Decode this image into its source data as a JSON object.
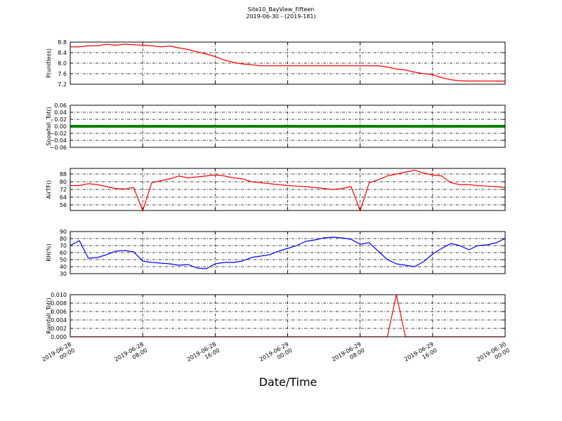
{
  "title": "Site10_BayView_Fifteen",
  "subtitle": "2019-06-30 - (2019-181)",
  "xlabel": "Date/Time",
  "x": [
    "2019-06-28 00:00",
    "2019-06-28 01:00",
    "2019-06-28 02:00",
    "2019-06-28 03:00",
    "2019-06-28 04:00",
    "2019-06-28 05:00",
    "2019-06-28 06:00",
    "2019-06-28 07:00",
    "2019-06-28 08:00",
    "2019-06-28 09:00",
    "2019-06-28 10:00",
    "2019-06-28 11:00",
    "2019-06-28 12:00",
    "2019-06-28 13:00",
    "2019-06-28 14:00",
    "2019-06-28 15:00",
    "2019-06-28 16:00",
    "2019-06-28 17:00",
    "2019-06-28 18:00",
    "2019-06-28 19:00",
    "2019-06-28 20:00",
    "2019-06-28 21:00",
    "2019-06-28 22:00",
    "2019-06-28 23:00",
    "2019-06-29 00:00",
    "2019-06-29 01:00",
    "2019-06-29 02:00",
    "2019-06-29 03:00",
    "2019-06-29 04:00",
    "2019-06-29 05:00",
    "2019-06-29 06:00",
    "2019-06-29 07:00",
    "2019-06-29 08:00",
    "2019-06-29 09:00",
    "2019-06-29 10:00",
    "2019-06-29 11:00",
    "2019-06-29 12:00",
    "2019-06-29 13:00",
    "2019-06-29 14:00",
    "2019-06-29 15:00",
    "2019-06-29 16:00",
    "2019-06-29 17:00",
    "2019-06-29 18:00",
    "2019-06-29 19:00",
    "2019-06-29 20:00",
    "2019-06-29 21:00",
    "2019-06-29 22:00",
    "2019-06-29 23:00",
    "2019-06-30 00:00"
  ],
  "xlim": [
    "2019-06-28 00:00",
    "2019-06-30 00:00"
  ],
  "xticks": [
    "2019-06-28 00:00",
    "2019-06-28 08:00",
    "2019-06-28 16:00",
    "2019-06-29 00:00",
    "2019-06-29 08:00",
    "2019-06-29 16:00",
    "2019-06-30 00:00"
  ],
  "chart_data": [
    {
      "type": "line",
      "ylabel": "P(unitless)",
      "grid": true,
      "ylim": [
        7.2,
        8.8
      ],
      "yticks": [
        {
          "value": 7.2,
          "label": "7.2"
        },
        {
          "value": 7.6,
          "label": "7.6"
        },
        {
          "value": 8,
          "label": "8.0"
        },
        {
          "value": 8.4,
          "label": "8.4"
        },
        {
          "value": 8.8,
          "label": "8.8"
        }
      ],
      "series": [
        {
          "color": "#ff0000",
          "values": [
            8.62,
            8.62,
            8.66,
            8.66,
            8.72,
            8.68,
            8.72,
            8.7,
            8.68,
            8.66,
            8.62,
            8.65,
            8.58,
            8.52,
            8.43,
            8.35,
            8.25,
            8.12,
            8.03,
            7.97,
            7.94,
            7.9,
            7.9,
            7.9,
            7.9,
            7.9,
            7.9,
            7.9,
            7.9,
            7.9,
            7.9,
            7.9,
            7.9,
            7.9,
            7.9,
            7.85,
            7.78,
            7.74,
            7.66,
            7.6,
            7.56,
            7.45,
            7.37,
            7.33,
            7.32,
            7.32,
            7.32,
            7.32,
            7.32
          ]
        }
      ]
    },
    {
      "type": "line",
      "ylabel": "Snowfall_Tot()",
      "grid": true,
      "ylim": [
        -0.06,
        0.06
      ],
      "yticks": [
        {
          "value": -0.06,
          "label": "−0.06"
        },
        {
          "value": -0.04,
          "label": "−0.04"
        },
        {
          "value": -0.02,
          "label": "−0.02"
        },
        {
          "value": 0,
          "label": "0.00"
        },
        {
          "value": 0.02,
          "label": "0.02"
        },
        {
          "value": 0.04,
          "label": "0.04"
        },
        {
          "value": 0.06,
          "label": "0.06"
        }
      ],
      "series": [
        {
          "color": "#008000",
          "values": [
            0,
            0,
            0,
            0,
            0,
            0,
            0,
            0,
            0,
            0,
            0,
            0,
            0,
            0,
            0,
            0,
            0,
            0,
            0,
            0,
            0,
            0,
            0,
            0,
            0,
            0,
            0,
            0,
            0,
            0,
            0,
            0,
            0,
            0,
            0,
            0,
            0,
            0,
            0,
            0,
            0,
            0,
            0,
            0,
            0,
            0,
            0,
            0,
            0
          ]
        }
      ]
    },
    {
      "type": "line",
      "ylabel": "AirTF()",
      "grid": true,
      "ylim": [
        50.2,
        93.8
      ],
      "yticks": [
        56,
        64,
        72,
        80,
        88
      ],
      "series": [
        {
          "color": "#ff0000",
          "values": [
            76,
            76,
            78,
            77,
            75,
            73,
            72.5,
            74,
            50,
            79,
            81,
            83,
            86,
            84,
            85,
            86,
            87,
            86,
            84,
            83,
            80,
            79,
            78,
            77,
            76,
            75.5,
            75,
            74,
            73,
            72,
            73,
            75,
            50,
            79,
            82,
            86,
            88,
            90,
            92,
            89,
            87,
            86,
            79,
            77,
            77,
            76,
            75.5,
            75,
            74
          ]
        }
      ]
    },
    {
      "type": "line",
      "ylabel": "RH(%)",
      "grid": true,
      "ylim": [
        30,
        90
      ],
      "yticks": [
        30,
        40,
        50,
        60,
        70,
        80,
        90
      ],
      "series": [
        {
          "color": "#0000ff",
          "values": [
            70,
            77,
            52,
            53,
            57,
            62,
            63,
            61,
            48,
            46,
            45,
            44,
            42,
            43,
            38,
            37,
            44,
            46,
            46,
            48,
            53,
            55,
            57,
            62,
            66,
            70,
            76,
            78,
            81,
            82,
            81,
            79,
            72,
            74,
            62,
            50,
            44,
            42,
            40,
            47,
            58,
            66,
            73,
            70,
            64,
            70,
            71,
            74,
            80
          ]
        }
      ]
    },
    {
      "type": "line",
      "ylabel": "Rainfall_Tot()",
      "grid": true,
      "ylim": [
        0,
        0.01
      ],
      "yticks": [
        {
          "value": 0,
          "label": "0.000"
        },
        {
          "value": 0.002,
          "label": "0.002"
        },
        {
          "value": 0.004,
          "label": "0.004"
        },
        {
          "value": 0.006,
          "label": "0.006"
        },
        {
          "value": 0.008,
          "label": "0.008"
        },
        {
          "value": 0.01,
          "label": "0.010"
        }
      ],
      "series": [
        {
          "color": "#ff0000",
          "values": [
            0,
            0,
            0,
            0,
            0,
            0,
            0,
            0,
            0,
            0,
            0,
            0,
            0,
            0,
            0,
            0,
            0,
            0,
            0,
            0,
            0,
            0,
            0,
            0,
            0,
            0,
            0,
            0,
            0,
            0,
            0,
            0,
            0,
            0,
            0,
            0,
            0.01,
            0,
            0,
            0,
            0,
            0,
            0,
            0,
            0,
            0,
            0,
            0,
            0
          ]
        }
      ]
    }
  ]
}
